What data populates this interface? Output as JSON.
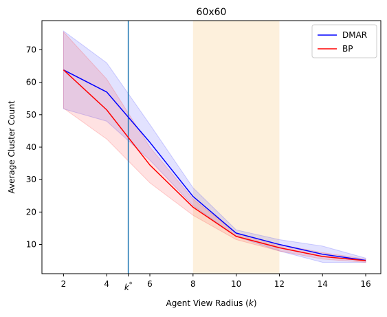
{
  "chart_data": {
    "type": "line",
    "title": "60x60",
    "xlabel_text": "Agent View Radius (",
    "xlabel_var": "k",
    "xlabel_close": ")",
    "ylabel": "Average Cluster Count",
    "xlim": [
      1.0,
      16.7
    ],
    "ylim": [
      1.0,
      79.0
    ],
    "x_ticks": [
      2,
      4,
      6,
      8,
      10,
      12,
      14,
      16
    ],
    "y_ticks": [
      10,
      20,
      30,
      40,
      50,
      60,
      70
    ],
    "k_star": {
      "x": 5,
      "label_base": "k",
      "label_sup": "*",
      "color": "#1f77b4"
    },
    "shaded_region": {
      "x_start": 8,
      "x_end": 12,
      "color": "#fdf0dc"
    },
    "legend_position": "upper right",
    "series": [
      {
        "name": "DMAR",
        "color": "#0000ff",
        "band_color": "#4d4dff",
        "x": [
          2,
          4,
          6,
          8,
          10,
          12,
          14,
          16
        ],
        "y": [
          63.8,
          57.0,
          41.5,
          24.8,
          13.5,
          10.0,
          7.0,
          5.1
        ],
        "lower": [
          51.8,
          48.0,
          36.0,
          22.0,
          12.5,
          8.0,
          4.5,
          4.5
        ],
        "upper": [
          75.8,
          66.0,
          47.0,
          27.5,
          14.5,
          11.5,
          9.5,
          5.8
        ]
      },
      {
        "name": "BP",
        "color": "#ff0000",
        "band_color": "#ff4d4d",
        "x": [
          2,
          4,
          6,
          8,
          10,
          12,
          14,
          16
        ],
        "y": [
          63.8,
          51.5,
          34.5,
          21.5,
          12.5,
          9.0,
          6.3,
          5.0
        ],
        "lower": [
          52.0,
          42.5,
          29.0,
          19.0,
          11.5,
          8.0,
          5.5,
          4.5
        ],
        "upper": [
          75.5,
          61.0,
          40.0,
          24.0,
          13.5,
          10.0,
          7.5,
          5.5
        ]
      }
    ]
  }
}
